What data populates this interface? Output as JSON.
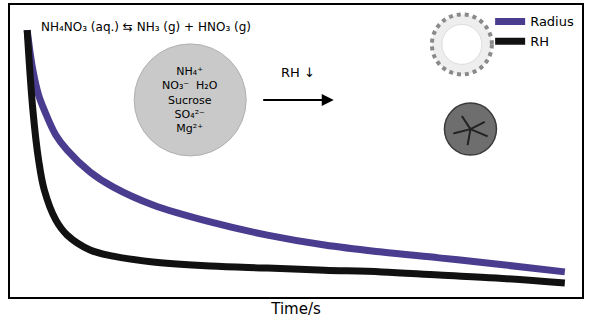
{
  "chart_data": {
    "type": "line",
    "x_label": "Time/s",
    "xlim": [
      0,
      100
    ],
    "ylim": [
      0,
      1
    ],
    "tick_labels": false,
    "grid": false,
    "legend": "top right",
    "equation": "NH₄NO₃ (aq.) ⇆ NH₃ (g) + HNO₃ (g)",
    "particle_labels": [
      "NH₄⁺",
      "NO₃⁻  H₂O",
      "Sucrose",
      "SO₄²⁻",
      "Mg²⁺"
    ],
    "arrow_label": "RH ↓",
    "x": [
      3,
      4,
      5,
      6,
      8,
      10,
      14,
      18,
      25,
      35,
      45,
      55,
      65,
      75,
      85,
      97
    ],
    "series": [
      {
        "name": "Radius",
        "color": "#4a3d8f",
        "values": [
          0.914,
          0.777,
          0.692,
          0.64,
          0.555,
          0.503,
          0.428,
          0.377,
          0.315,
          0.257,
          0.212,
          0.178,
          0.154,
          0.134,
          0.113,
          0.086
        ]
      },
      {
        "name": "RH",
        "color": "#111111",
        "values": [
          0.914,
          0.64,
          0.469,
          0.366,
          0.264,
          0.212,
          0.161,
          0.14,
          0.12,
          0.106,
          0.099,
          0.092,
          0.086,
          0.075,
          0.065,
          0.048
        ]
      }
    ]
  }
}
